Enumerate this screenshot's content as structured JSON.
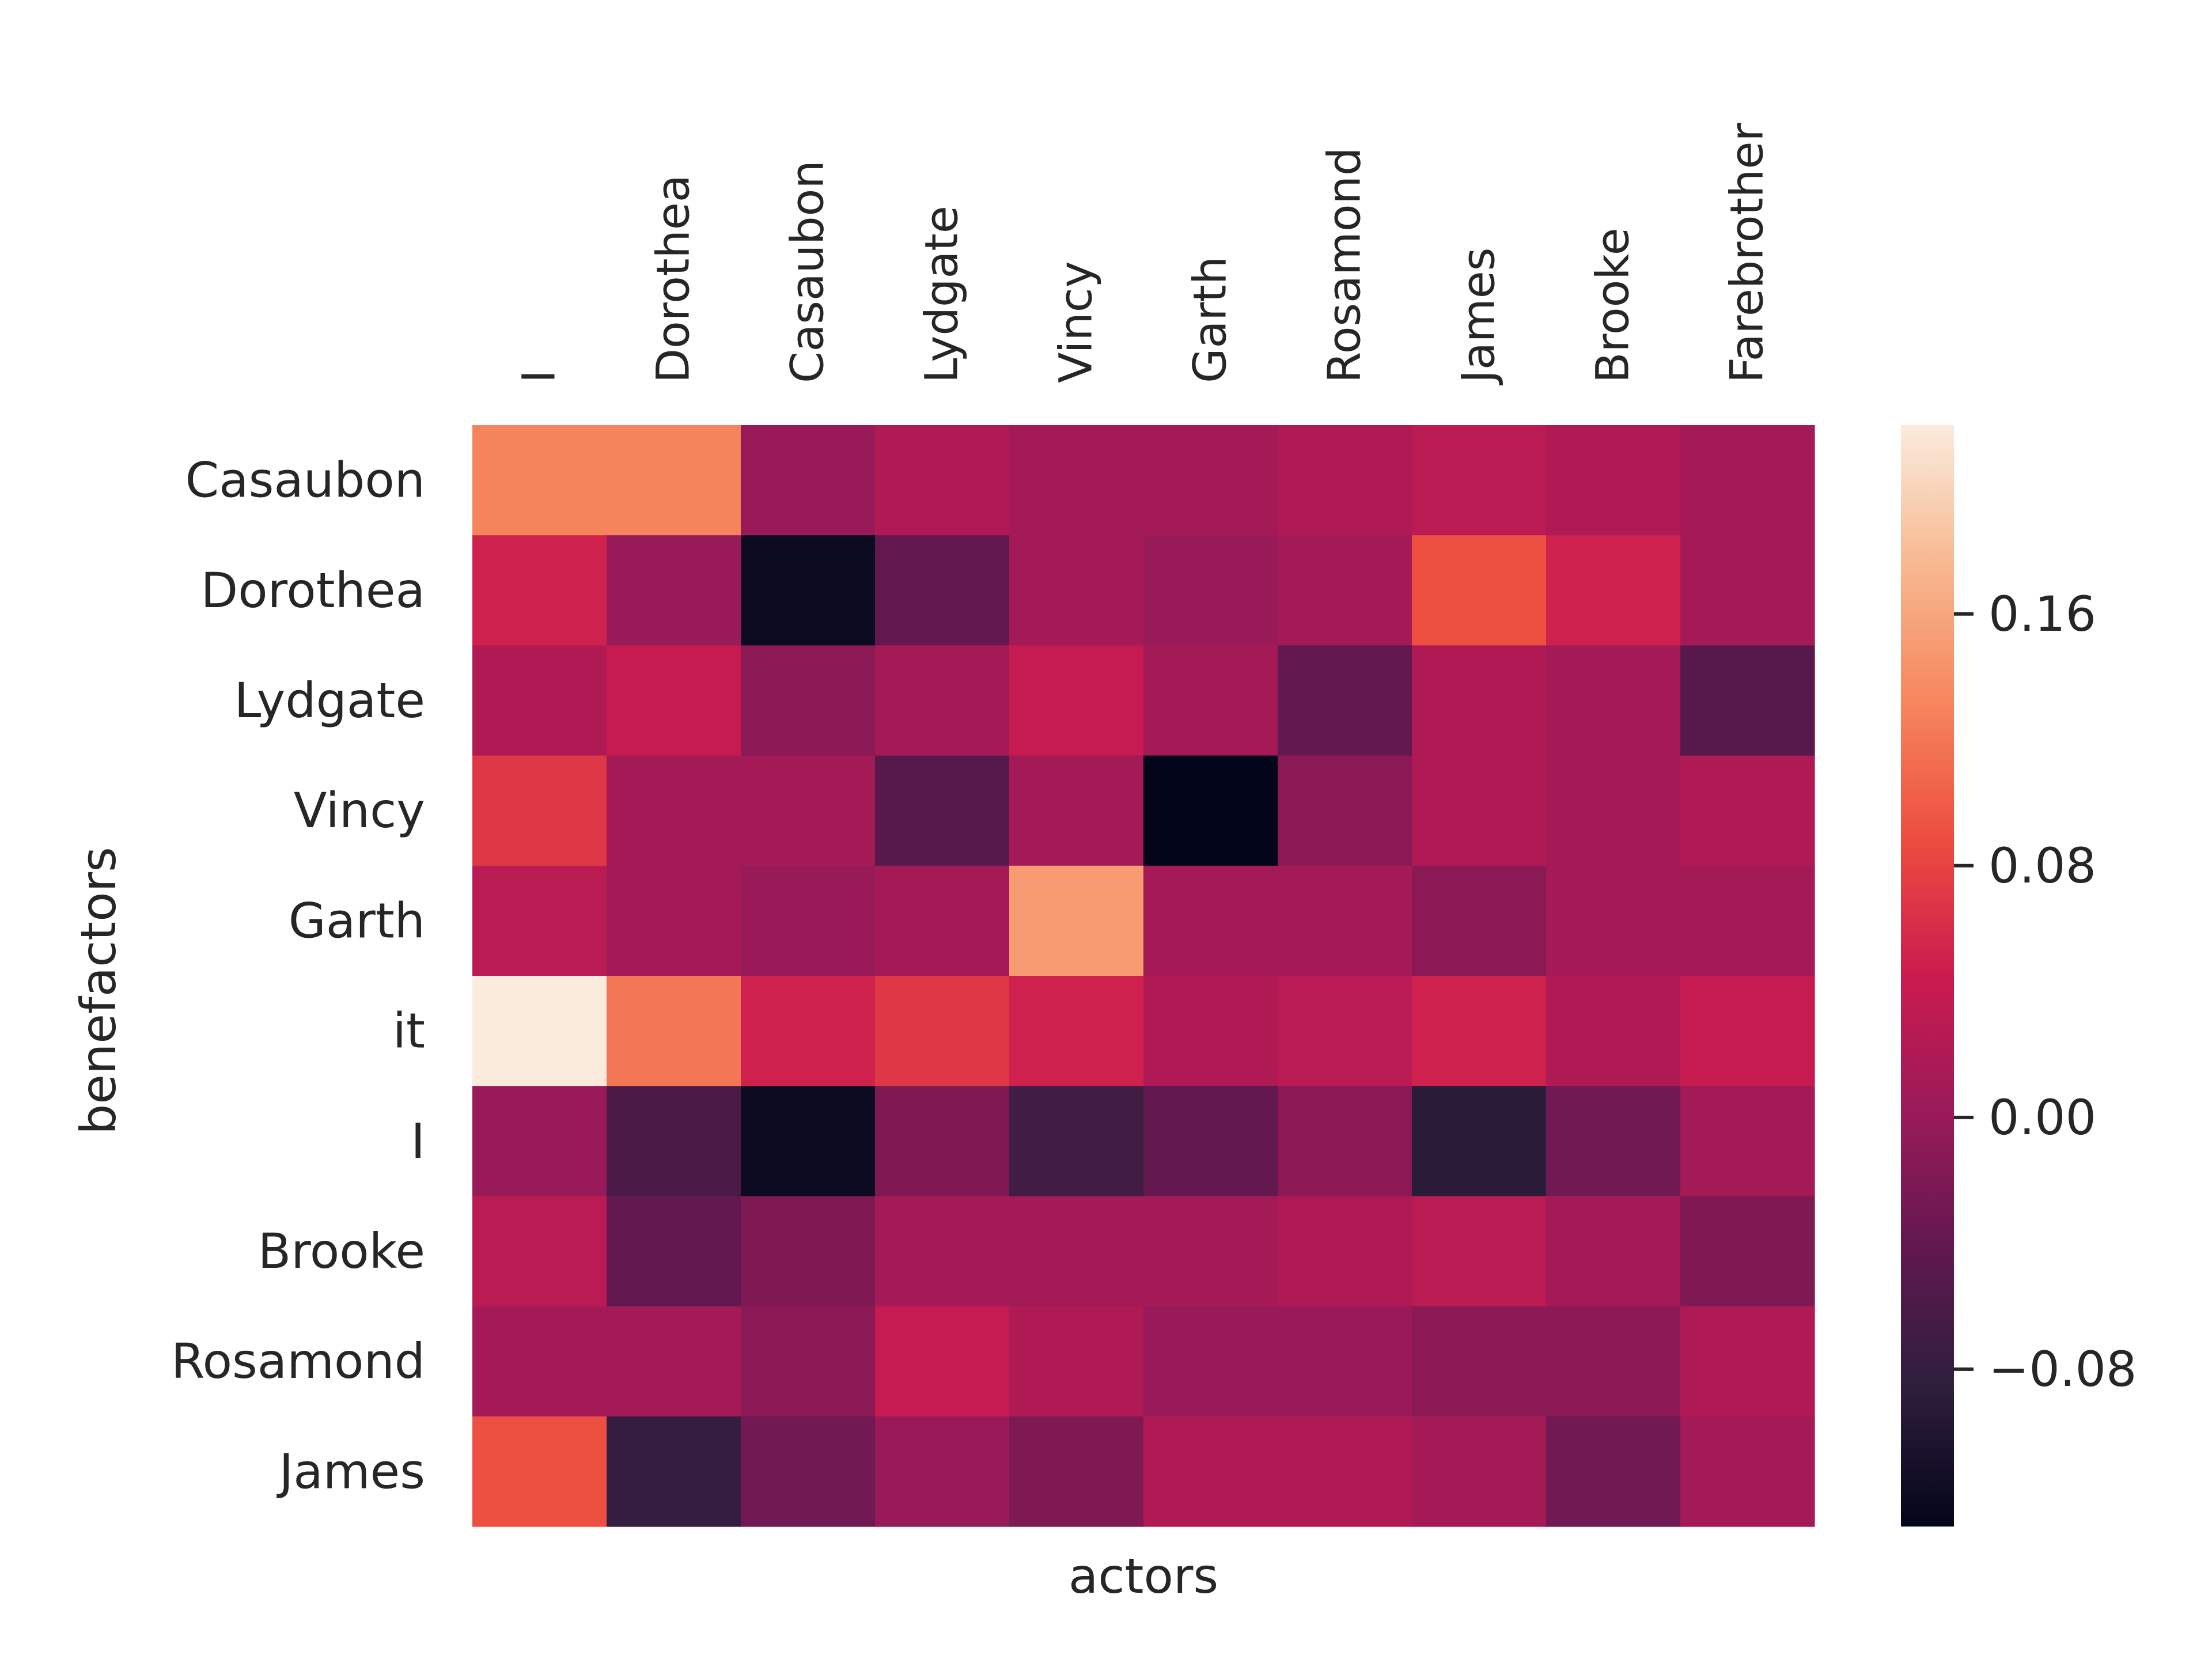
{
  "chart_data": {
    "type": "heatmap",
    "title": "",
    "xlabel": "actors",
    "ylabel": "benefactors",
    "x_categories": [
      "I",
      "Dorothea",
      "Casaubon",
      "Lydgate",
      "Vincy",
      "Garth",
      "Rosamond",
      "James",
      "Brooke",
      "Farebrother"
    ],
    "y_categories": [
      "Casaubon",
      "Dorothea",
      "Lydgate",
      "Vincy",
      "Garth",
      "it",
      "I",
      "Brooke",
      "Rosamond",
      "James"
    ],
    "values": [
      [
        0.13,
        0.13,
        0.0,
        0.02,
        0.01,
        0.01,
        0.02,
        0.03,
        0.02,
        0.01
      ],
      [
        0.05,
        0.0,
        -0.12,
        -0.04,
        0.01,
        0.0,
        0.01,
        0.09,
        0.05,
        0.01
      ],
      [
        0.02,
        0.04,
        -0.01,
        0.01,
        0.04,
        0.01,
        -0.04,
        0.02,
        0.01,
        -0.05
      ],
      [
        0.07,
        0.01,
        0.01,
        -0.05,
        0.01,
        -0.13,
        -0.01,
        0.02,
        0.01,
        0.02
      ],
      [
        0.03,
        0.01,
        0.0,
        0.01,
        0.15,
        0.01,
        0.01,
        -0.01,
        0.01,
        0.01
      ],
      [
        0.22,
        0.12,
        0.05,
        0.07,
        0.05,
        0.02,
        0.03,
        0.05,
        0.02,
        0.04
      ],
      [
        0.0,
        -0.06,
        -0.12,
        -0.02,
        -0.07,
        -0.04,
        -0.01,
        -0.09,
        -0.03,
        0.01
      ],
      [
        0.03,
        -0.04,
        -0.02,
        0.01,
        0.01,
        0.01,
        0.02,
        0.03,
        0.01,
        -0.02
      ],
      [
        0.01,
        0.01,
        -0.01,
        0.04,
        0.02,
        0.0,
        0.0,
        -0.01,
        -0.01,
        0.02
      ],
      [
        0.09,
        -0.08,
        -0.03,
        0.0,
        -0.02,
        0.02,
        0.02,
        0.01,
        -0.03,
        0.01
      ]
    ],
    "vmin": -0.13,
    "vmax": 0.22,
    "colormap": "rocket",
    "colorbar_ticks": [
      "0.16",
      "0.08",
      "0.00",
      "−0.08"
    ],
    "colorbar_tick_values": [
      0.16,
      0.08,
      0.0,
      -0.08
    ]
  }
}
